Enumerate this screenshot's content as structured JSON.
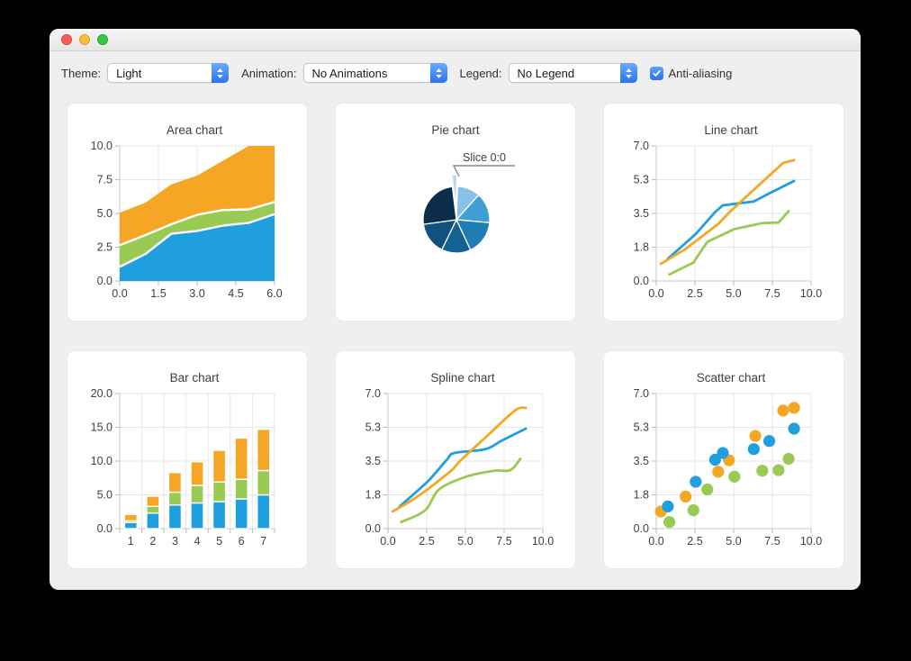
{
  "toolbar": {
    "theme": {
      "label": "Theme:",
      "value": "Light"
    },
    "animation": {
      "label": "Animation:",
      "value": "No Animations"
    },
    "legend": {
      "label": "Legend:",
      "value": "No Legend"
    },
    "antialiasing": {
      "label": "Anti-aliasing",
      "checked": true
    }
  },
  "colors": {
    "accent_blue": "#3b82f6",
    "series_blue": "#209fdf",
    "series_green": "#99ca53",
    "series_orange": "#f6a625"
  },
  "chart_data": [
    {
      "type": "area",
      "title": "Area chart",
      "x": [
        0,
        1,
        2,
        3,
        4,
        5,
        6
      ],
      "values_mode": "stacked-top-edges",
      "series": [
        {
          "name": "blue",
          "color": "#209fdf",
          "values": [
            1.05,
            2.0,
            3.5,
            3.7,
            4.1,
            4.3,
            4.95
          ]
        },
        {
          "name": "green",
          "color": "#99ca53",
          "values": [
            2.65,
            3.4,
            4.2,
            4.9,
            5.25,
            5.3,
            5.85
          ]
        },
        {
          "name": "orange",
          "color": "#f6a625",
          "values": [
            5.05,
            5.8,
            7.15,
            7.8,
            8.9,
            10.0,
            10.0
          ]
        }
      ],
      "xlim": [
        0,
        6
      ],
      "ylim": [
        0,
        10
      ],
      "x_ticks": [
        "0.0",
        "1.5",
        "3.0",
        "4.5",
        "6.0"
      ],
      "y_ticks": [
        "0.0",
        "2.5",
        "5.0",
        "7.5",
        "10.0"
      ]
    },
    {
      "type": "pie",
      "title": "Pie chart",
      "label": "Slice 0:0",
      "slices": [
        {
          "name": "Slice 0:0",
          "start": -7,
          "end": 2,
          "color": "#b7d9f0",
          "exploded": true
        },
        {
          "start": 2,
          "end": 42,
          "color": "#88c3e7"
        },
        {
          "start": 42,
          "end": 95,
          "color": "#3f9fd5"
        },
        {
          "start": 95,
          "end": 155,
          "color": "#1f7cb5"
        },
        {
          "start": 155,
          "end": 206,
          "color": "#15618f"
        },
        {
          "start": 206,
          "end": 262,
          "color": "#12517d"
        },
        {
          "start": 262,
          "end": 353,
          "color": "#0b2d49"
        }
      ]
    },
    {
      "type": "line",
      "title": "Line chart",
      "series": [
        {
          "name": "green",
          "color": "#99ca53",
          "points": [
            [
              0.85,
              0.34
            ],
            [
              2.4,
              0.95
            ],
            [
              3.3,
              2.03
            ],
            [
              5.05,
              2.69
            ],
            [
              6.85,
              3.0
            ],
            [
              7.9,
              3.03
            ],
            [
              8.55,
              3.62
            ]
          ]
        },
        {
          "name": "blue",
          "color": "#209fdf",
          "points": [
            [
              0.75,
              1.15
            ],
            [
              2.55,
              2.43
            ],
            [
              3.8,
              3.57
            ],
            [
              4.3,
              3.92
            ],
            [
              6.3,
              4.12
            ],
            [
              7.3,
              4.54
            ],
            [
              8.9,
              5.18
            ]
          ]
        },
        {
          "name": "orange",
          "color": "#f6a625",
          "points": [
            [
              0.3,
              0.89
            ],
            [
              1.9,
              1.66
            ],
            [
              4.0,
              2.95
            ],
            [
              4.7,
              3.54
            ],
            [
              6.4,
              4.8
            ],
            [
              8.2,
              6.12
            ],
            [
              8.9,
              6.26
            ]
          ]
        }
      ],
      "xlim": [
        0,
        10
      ],
      "ylim": [
        0,
        7
      ],
      "x_ticks": [
        "0.0",
        "2.5",
        "5.0",
        "7.5",
        "10.0"
      ],
      "y_ticks": [
        "0.0",
        "1.8",
        "3.5",
        "5.3",
        "7.0"
      ]
    },
    {
      "type": "bar",
      "title": "Bar chart",
      "categories": [
        "1",
        "2",
        "3",
        "4",
        "5",
        "6",
        "7"
      ],
      "series": [
        {
          "name": "blue",
          "color": "#209fdf",
          "values": [
            0.9,
            2.3,
            3.5,
            3.8,
            4.0,
            4.4,
            5.0
          ]
        },
        {
          "name": "green",
          "color": "#99ca53",
          "values": [
            0.25,
            1.0,
            1.9,
            2.6,
            2.9,
            2.9,
            3.6
          ]
        },
        {
          "name": "orange",
          "color": "#f6a625",
          "values": [
            0.95,
            1.5,
            2.9,
            3.5,
            4.7,
            6.1,
            6.1
          ]
        }
      ],
      "ylim": [
        0,
        20
      ],
      "y_ticks": [
        "0.0",
        "5.0",
        "10.0",
        "15.0",
        "20.0"
      ]
    },
    {
      "type": "spline",
      "title": "Spline chart",
      "series": [
        {
          "name": "green",
          "color": "#99ca53",
          "points": [
            [
              0.85,
              0.34
            ],
            [
              2.4,
              0.95
            ],
            [
              3.3,
              2.03
            ],
            [
              5.05,
              2.69
            ],
            [
              6.85,
              3.0
            ],
            [
              7.9,
              3.03
            ],
            [
              8.55,
              3.62
            ]
          ]
        },
        {
          "name": "blue",
          "color": "#209fdf",
          "points": [
            [
              0.75,
              1.15
            ],
            [
              2.55,
              2.43
            ],
            [
              3.8,
              3.57
            ],
            [
              4.3,
              3.92
            ],
            [
              6.3,
              4.12
            ],
            [
              7.3,
              4.54
            ],
            [
              8.9,
              5.18
            ]
          ]
        },
        {
          "name": "orange",
          "color": "#f6a625",
          "points": [
            [
              0.3,
              0.89
            ],
            [
              1.9,
              1.66
            ],
            [
              4.0,
              2.95
            ],
            [
              4.7,
              3.54
            ],
            [
              6.4,
              4.8
            ],
            [
              8.2,
              6.12
            ],
            [
              8.9,
              6.26
            ]
          ]
        }
      ],
      "xlim": [
        0,
        10
      ],
      "ylim": [
        0,
        7
      ],
      "x_ticks": [
        "0.0",
        "2.5",
        "5.0",
        "7.5",
        "10.0"
      ],
      "y_ticks": [
        "0.0",
        "1.8",
        "3.5",
        "5.3",
        "7.0"
      ]
    },
    {
      "type": "scatter",
      "title": "Scatter chart",
      "series": [
        {
          "name": "orange",
          "color": "#f6a625",
          "points": [
            [
              0.3,
              0.89
            ],
            [
              1.9,
              1.66
            ],
            [
              4.0,
              2.95
            ],
            [
              4.7,
              3.54
            ],
            [
              6.4,
              4.8
            ],
            [
              8.2,
              6.12
            ],
            [
              8.9,
              6.26
            ]
          ]
        },
        {
          "name": "green",
          "color": "#99ca53",
          "points": [
            [
              0.85,
              0.34
            ],
            [
              2.4,
              0.95
            ],
            [
              3.3,
              2.03
            ],
            [
              5.05,
              2.69
            ],
            [
              6.85,
              3.0
            ],
            [
              7.9,
              3.03
            ],
            [
              8.55,
              3.62
            ]
          ]
        },
        {
          "name": "blue",
          "color": "#209fdf",
          "points": [
            [
              0.75,
              1.15
            ],
            [
              2.55,
              2.43
            ],
            [
              3.8,
              3.57
            ],
            [
              4.3,
              3.92
            ],
            [
              6.3,
              4.12
            ],
            [
              7.3,
              4.54
            ],
            [
              8.9,
              5.18
            ]
          ]
        }
      ],
      "xlim": [
        0,
        10
      ],
      "ylim": [
        0,
        7
      ],
      "x_ticks": [
        "0.0",
        "2.5",
        "5.0",
        "7.5",
        "10.0"
      ],
      "y_ticks": [
        "0.0",
        "1.8",
        "3.5",
        "5.3",
        "7.0"
      ]
    }
  ]
}
